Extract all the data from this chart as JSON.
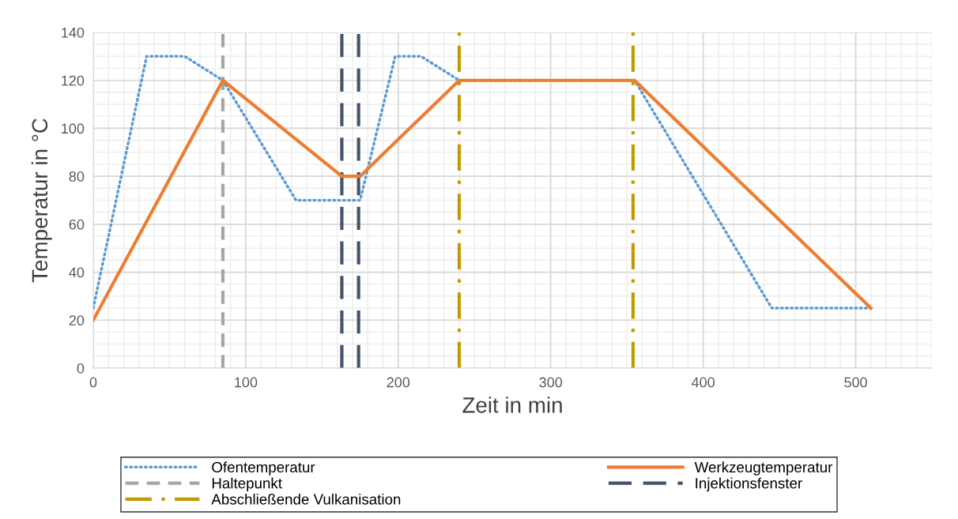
{
  "chart_data": {
    "type": "line",
    "xlabel": "Zeit in min",
    "ylabel": "Temperatur in °C",
    "xlim": [
      0,
      550
    ],
    "xticks": [
      0,
      100,
      200,
      300,
      400,
      500
    ],
    "ylim": [
      0,
      140
    ],
    "yticks": [
      0,
      20,
      40,
      60,
      80,
      100,
      120,
      140
    ],
    "grid": true,
    "legend": "bottom",
    "marker": "none",
    "series": [
      {
        "name": "Ofentemperatur",
        "color": "#5b9bd5",
        "line_style": "dotted",
        "x": [
          0,
          35,
          60,
          85,
          133,
          175,
          198,
          215,
          240,
          355,
          445,
          510
        ],
        "values": [
          25,
          130,
          130,
          120,
          70,
          70,
          130,
          130,
          120,
          120,
          25,
          25
        ]
      },
      {
        "name": "Werkzeugtemperatur",
        "color": "#ed7d31",
        "line_style": "solid",
        "x": [
          0,
          85,
          163,
          175,
          240,
          355,
          510
        ],
        "values": [
          20,
          120,
          80,
          80,
          120,
          120,
          25
        ]
      }
    ],
    "ref_lines": [
      {
        "axis": "x",
        "value": 85,
        "label": "Haltepunkt",
        "color": "#a5a5a5",
        "line_style": "dashed"
      },
      {
        "axis": "x",
        "value": 163,
        "label": "Injektionsfenster",
        "color": "#44546a",
        "line_style": "longdashed"
      },
      {
        "axis": "x",
        "value": 174,
        "color": "#44546a",
        "line_style": "longdashed"
      },
      {
        "axis": "x",
        "value": 240,
        "label": "Abschließende Vulkanisation",
        "color": "#c49a00",
        "line_style": "dashdot"
      },
      {
        "axis": "x",
        "value": 354,
        "color": "#c49a00",
        "line_style": "dashdot"
      }
    ]
  }
}
